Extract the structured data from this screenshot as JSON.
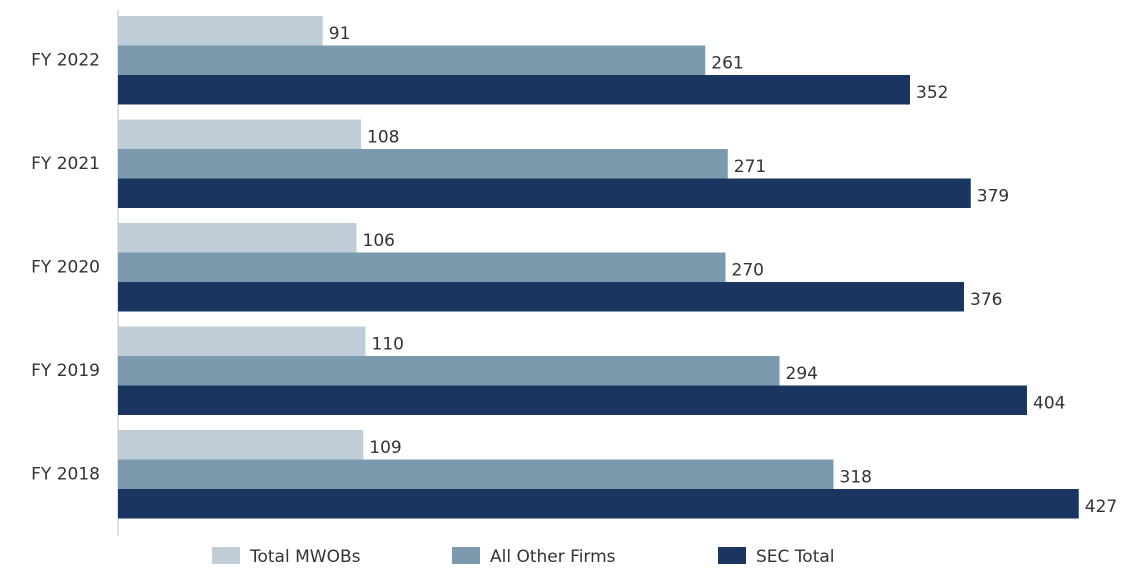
{
  "chart_data": {
    "type": "bar",
    "orientation": "horizontal",
    "categories": [
      "FY 2022",
      "FY 2021",
      "FY 2020",
      "FY 2019",
      "FY 2018"
    ],
    "series": [
      {
        "name": "Total MWOBs",
        "color": "#bfcdd8",
        "values": [
          91,
          108,
          106,
          110,
          109
        ]
      },
      {
        "name": "All Other Firms",
        "color": "#7b9aae",
        "values": [
          261,
          271,
          270,
          294,
          318
        ]
      },
      {
        "name": "SEC Total",
        "color": "#1a3660",
        "values": [
          352,
          379,
          376,
          404,
          427
        ]
      }
    ],
    "xlim": [
      0,
      450
    ],
    "legend": "bottom"
  }
}
